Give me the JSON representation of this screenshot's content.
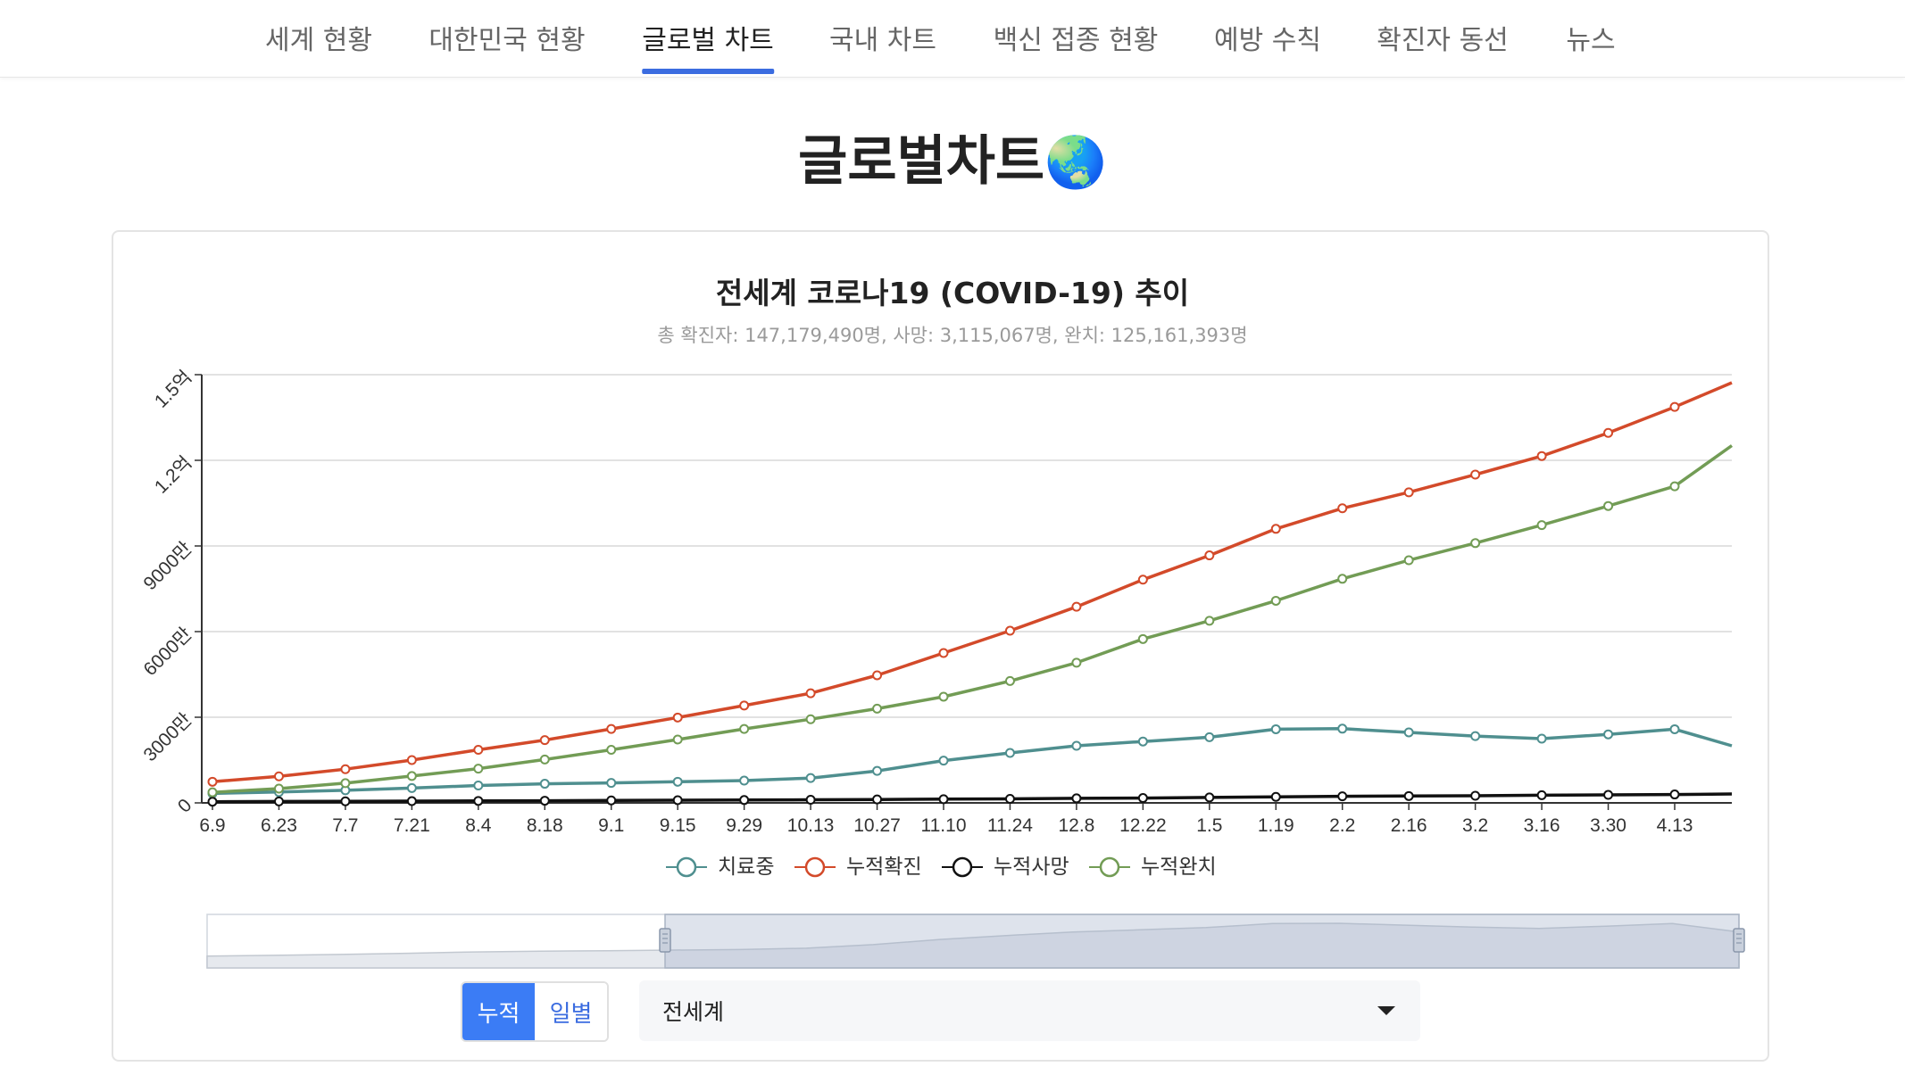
{
  "nav": {
    "items": [
      {
        "label": "세계 현황"
      },
      {
        "label": "대한민국 현황"
      },
      {
        "label": "글로벌 차트",
        "active": true
      },
      {
        "label": "국내 차트"
      },
      {
        "label": "백신 접종 현황"
      },
      {
        "label": "예방 수칙"
      },
      {
        "label": "확진자 동선"
      },
      {
        "label": "뉴스"
      }
    ],
    "accent_color": "#3b6ce0"
  },
  "page": {
    "title": "글로벌차트",
    "title_emoji": "🌏"
  },
  "controls": {
    "toggle": [
      {
        "label": "누적",
        "active": true
      },
      {
        "label": "일별",
        "active": false
      }
    ],
    "select_value": "전세계",
    "select_icon": "caret-down-icon"
  },
  "chart_data": {
    "type": "line",
    "title": "전세계 코로나19 (COVID-19) 추이",
    "subtitle": "총 확진자: 147,179,490명, 사망: 3,115,067명, 완치: 125,161,393명",
    "ylim": [
      0,
      150000000
    ],
    "y_ticks": [
      {
        "value": 0,
        "label": "0"
      },
      {
        "value": 30000000,
        "label": "3000만"
      },
      {
        "value": 60000000,
        "label": "6000만"
      },
      {
        "value": 90000000,
        "label": "9000만"
      },
      {
        "value": 120000000,
        "label": "1.2억"
      },
      {
        "value": 150000000,
        "label": "1.5억"
      }
    ],
    "categories": [
      "6.9",
      "6.23",
      "7.7",
      "7.21",
      "8.4",
      "8.18",
      "9.1",
      "9.15",
      "9.29",
      "10.13",
      "10.27",
      "11.10",
      "11.24",
      "12.8",
      "12.22",
      "1.5",
      "1.19",
      "2.2",
      "2.16",
      "3.2",
      "3.16",
      "3.30",
      "4.13",
      ""
    ],
    "grid": true,
    "legend_position": "bottom",
    "series": [
      {
        "name": "치료중",
        "color": "#4f8f8f",
        "values": [
          3300000,
          3800000,
          4400000,
          5200000,
          6100000,
          6700000,
          7000000,
          7400000,
          7800000,
          8700000,
          11200000,
          14800000,
          17500000,
          20000000,
          21500000,
          23000000,
          25800000,
          26000000,
          24700000,
          23400000,
          22500000,
          24000000,
          25800000,
          20000000
        ]
      },
      {
        "name": "누적확진",
        "color": "#d34a2a",
        "values": [
          7400000,
          9300000,
          11800000,
          15000000,
          18600000,
          22000000,
          25900000,
          29900000,
          34100000,
          38400000,
          44700000,
          52500000,
          60300000,
          68700000,
          78200000,
          86700000,
          96000000,
          103200000,
          108800000,
          115000000,
          121500000,
          129600000,
          138700000,
          147200000
        ]
      },
      {
        "name": "누적사망",
        "color": "#111111",
        "values": [
          410000,
          500000,
          550000,
          610000,
          680000,
          760000,
          860000,
          950000,
          1000000,
          1100000,
          1200000,
          1300000,
          1400000,
          1600000,
          1700000,
          1900000,
          2100000,
          2300000,
          2400000,
          2500000,
          2700000,
          2800000,
          2950000,
          3115067
        ]
      },
      {
        "name": "누적완치",
        "color": "#729c55",
        "values": [
          3700000,
          5000000,
          6900000,
          9400000,
          12000000,
          15200000,
          18600000,
          22200000,
          25900000,
          29300000,
          33000000,
          37200000,
          42700000,
          49100000,
          57400000,
          63800000,
          70800000,
          78500000,
          85000000,
          91000000,
          97300000,
          104000000,
          110900000,
          125161393
        ]
      }
    ]
  }
}
